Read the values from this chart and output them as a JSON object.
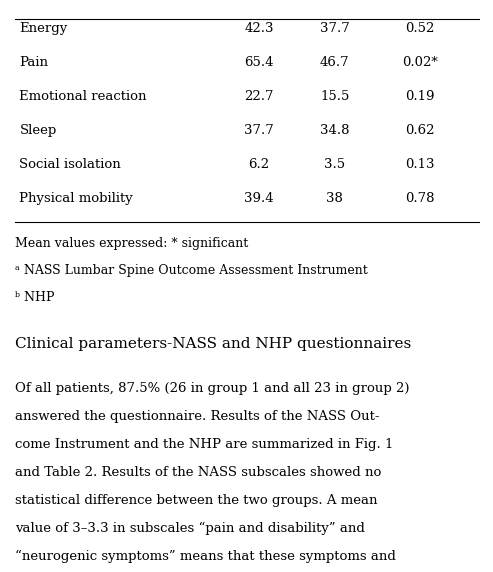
{
  "table_rows": [
    [
      "Energy",
      "42.3",
      "37.7",
      "0.52"
    ],
    [
      "Pain",
      "65.4",
      "46.7",
      "0.02*"
    ],
    [
      "Emotional reaction",
      "22.7",
      "15.5",
      "0.19"
    ],
    [
      "Sleep",
      "37.7",
      "34.8",
      "0.62"
    ],
    [
      "Social isolation",
      "6.2",
      "3.5",
      "0.13"
    ],
    [
      "Physical mobility",
      "39.4",
      "38",
      "0.78"
    ]
  ],
  "footnotes": [
    "Mean values expressed: * significant",
    "ᵃ NASS Lumbar Spine Outcome Assessment Instrument",
    "ᵇ NHP"
  ],
  "section_title": "Clinical parameters-NASS and NHP questionnaires",
  "body_text": "Of all patients, 87.5% (26 in group 1 and all 23 in group 2)\nanswered the questionnaire. Results of the NASS Out-\ncome Instrument and the NHP are summarized in Fig. 1\nand Table 2. Results of the NASS subscales showed no\nstatistical difference between the two groups. A mean\nvalue of 3–3.3 in subscales “pain and disability” and\n“neurogenic symptoms” means that these symptoms and",
  "bg_color": "#ffffff",
  "text_color": "#000000",
  "line_color": "#000000",
  "font_size": 9.5,
  "title_font_size": 11.0,
  "body_font_size": 9.5,
  "footnote_font_size": 9.0
}
